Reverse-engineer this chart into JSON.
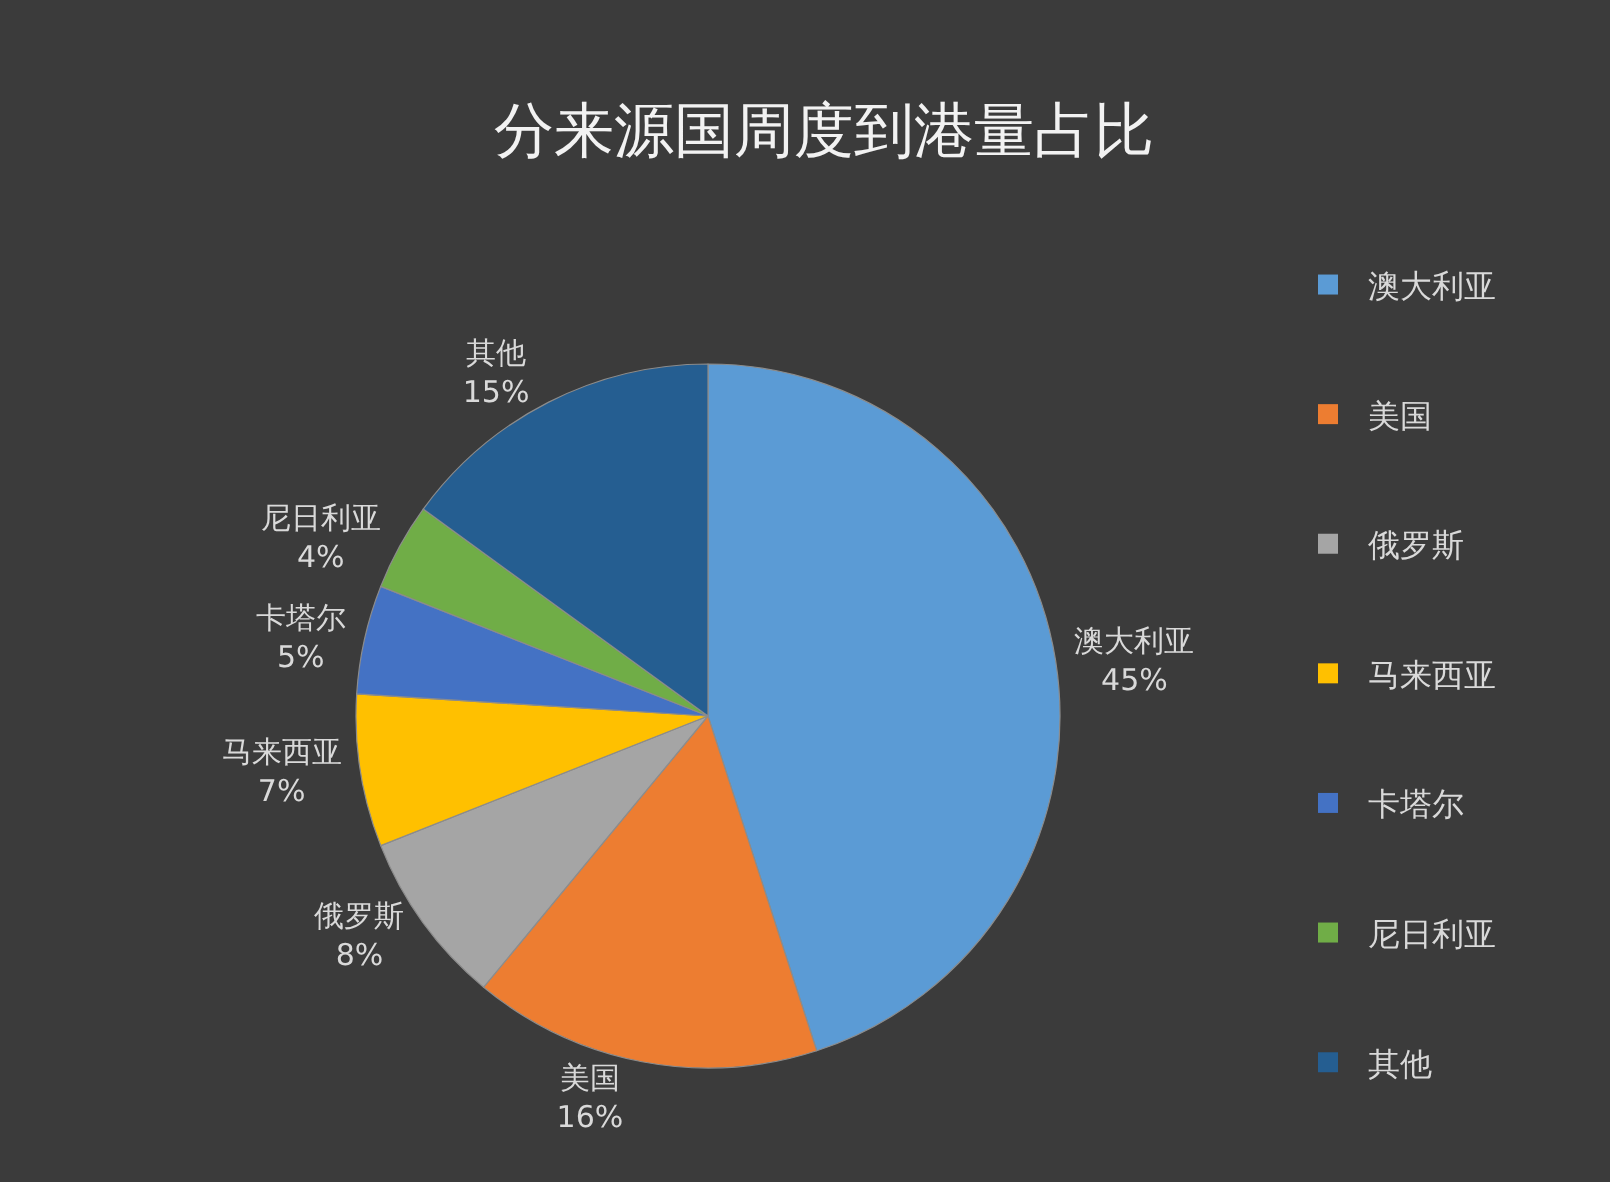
{
  "chart_data": {
    "type": "pie",
    "title": "分来源国周度到港量占比",
    "categories": [
      "澳大利亚",
      "美国",
      "俄罗斯",
      "马来西亚",
      "卡塔尔",
      "尼日利亚",
      "其他"
    ],
    "values": [
      45,
      16,
      8,
      7,
      5,
      4,
      15
    ],
    "colors": [
      "#5b9bd5",
      "#ed7d31",
      "#a5a5a5",
      "#ffc000",
      "#4472c4",
      "#70ad47",
      "#255e91"
    ],
    "value_labels": [
      "45%",
      "16%",
      "8%",
      "7%",
      "5%",
      "4%",
      "15%"
    ],
    "legend": "right"
  }
}
